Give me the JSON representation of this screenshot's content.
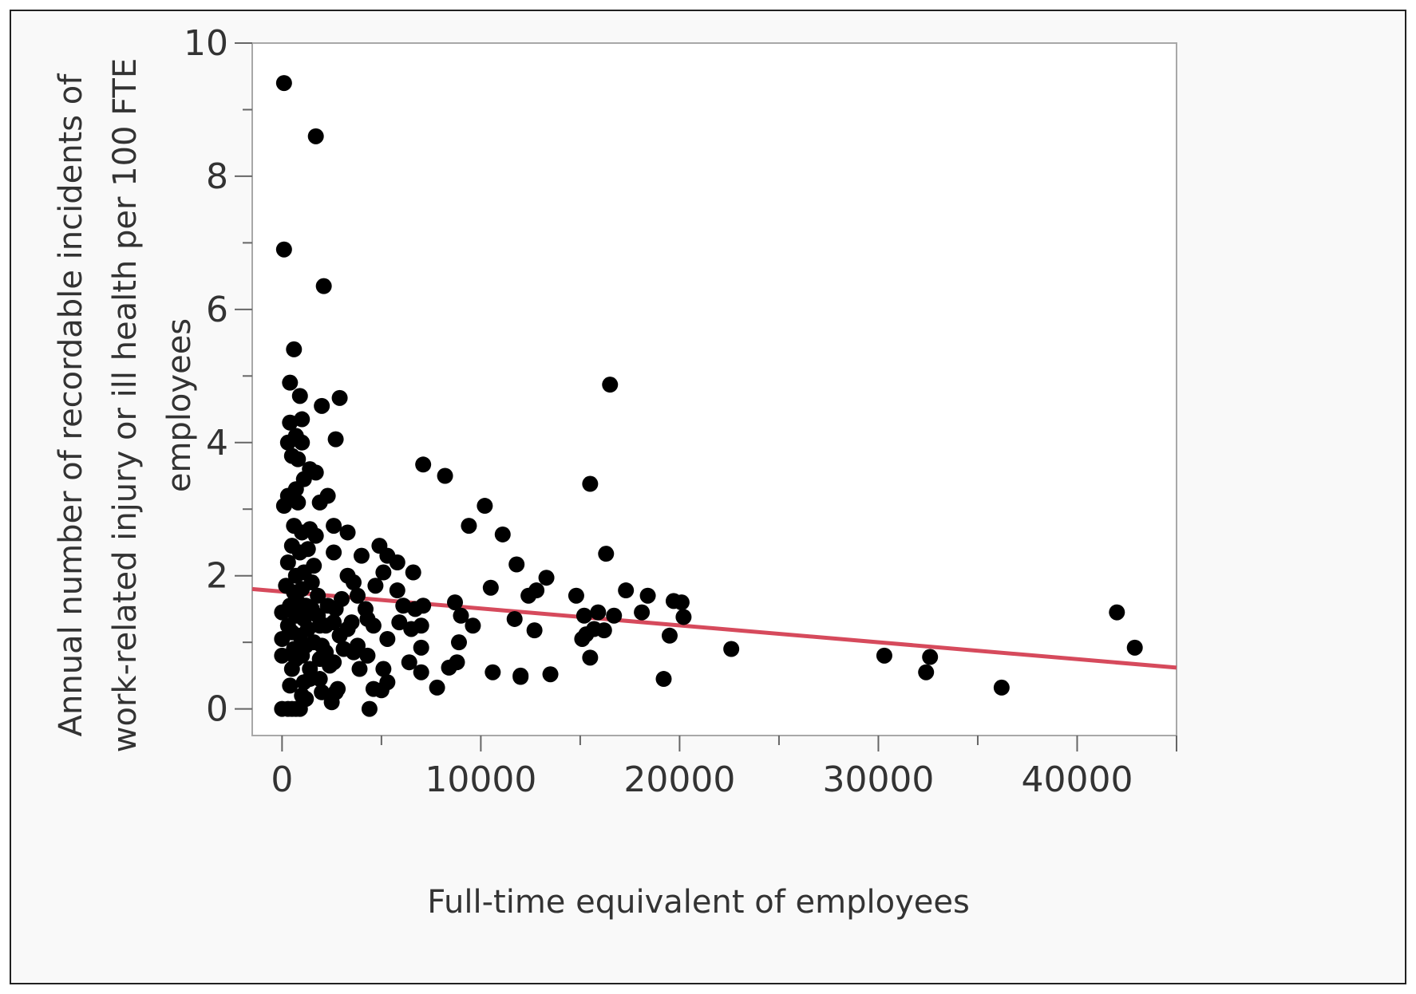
{
  "chart_data": {
    "type": "scatter",
    "title": "",
    "xlabel": "Full-time equivalent of employees",
    "ylabel_lines": [
      "Annual number of recordable incidents of",
      "work-related injury or ill health per 100 FTE",
      "employees"
    ],
    "xlim": [
      -1500,
      45000
    ],
    "ylim": [
      -0.4,
      10
    ],
    "x_ticks": [
      0,
      10000,
      20000,
      30000,
      40000
    ],
    "y_ticks": [
      0,
      2,
      4,
      6,
      8,
      10
    ],
    "grid": false,
    "colors": {
      "points": "#000000",
      "fit_line": "#d64a5c"
    },
    "fit_line": {
      "x": [
        -1500,
        45000
      ],
      "y": [
        1.8,
        0.62
      ]
    },
    "points": [
      [
        100,
        9.4
      ],
      [
        1700,
        8.6
      ],
      [
        100,
        6.9
      ],
      [
        2100,
        6.35
      ],
      [
        600,
        5.4
      ],
      [
        16500,
        4.87
      ],
      [
        400,
        4.9
      ],
      [
        900,
        4.7
      ],
      [
        2000,
        4.55
      ],
      [
        2900,
        4.67
      ],
      [
        400,
        4.3
      ],
      [
        1000,
        4.35
      ],
      [
        700,
        4.1
      ],
      [
        2700,
        4.05
      ],
      [
        300,
        4.0
      ],
      [
        1000,
        4.0
      ],
      [
        500,
        3.8
      ],
      [
        800,
        3.75
      ],
      [
        1400,
        3.6
      ],
      [
        1700,
        3.55
      ],
      [
        1100,
        3.45
      ],
      [
        7100,
        3.67
      ],
      [
        8200,
        3.5
      ],
      [
        15500,
        3.38
      ],
      [
        300,
        3.2
      ],
      [
        700,
        3.3
      ],
      [
        2300,
        3.2
      ],
      [
        1900,
        3.1
      ],
      [
        100,
        3.05
      ],
      [
        800,
        3.1
      ],
      [
        10200,
        3.05
      ],
      [
        600,
        2.75
      ],
      [
        1000,
        2.65
      ],
      [
        1700,
        2.6
      ],
      [
        2600,
        2.75
      ],
      [
        3300,
        2.65
      ],
      [
        9400,
        2.75
      ],
      [
        11100,
        2.62
      ],
      [
        500,
        2.45
      ],
      [
        900,
        2.35
      ],
      [
        1300,
        2.4
      ],
      [
        2600,
        2.35
      ],
      [
        4000,
        2.3
      ],
      [
        4900,
        2.45
      ],
      [
        5300,
        2.3
      ],
      [
        5800,
        2.2
      ],
      [
        300,
        2.2
      ],
      [
        1600,
        2.15
      ],
      [
        11800,
        2.17
      ],
      [
        16300,
        2.33
      ],
      [
        700,
        2.0
      ],
      [
        1100,
        2.05
      ],
      [
        3300,
        2.0
      ],
      [
        3600,
        1.9
      ],
      [
        5100,
        2.05
      ],
      [
        6600,
        2.05
      ],
      [
        13300,
        1.97
      ],
      [
        200,
        1.85
      ],
      [
        600,
        1.75
      ],
      [
        1000,
        1.8
      ],
      [
        1800,
        1.7
      ],
      [
        3000,
        1.65
      ],
      [
        3800,
        1.7
      ],
      [
        5800,
        1.78
      ],
      [
        10500,
        1.82
      ],
      [
        12400,
        1.7
      ],
      [
        12800,
        1.78
      ],
      [
        14800,
        1.7
      ],
      [
        17300,
        1.78
      ],
      [
        18400,
        1.7
      ],
      [
        19700,
        1.62
      ],
      [
        20100,
        1.6
      ],
      [
        400,
        1.55
      ],
      [
        800,
        1.6
      ],
      [
        1500,
        1.5
      ],
      [
        2300,
        1.55
      ],
      [
        4200,
        1.5
      ],
      [
        6100,
        1.55
      ],
      [
        6700,
        1.5
      ],
      [
        7100,
        1.55
      ],
      [
        8700,
        1.6
      ],
      [
        0,
        1.45
      ],
      [
        700,
        1.4
      ],
      [
        1100,
        1.35
      ],
      [
        1800,
        1.4
      ],
      [
        2600,
        1.3
      ],
      [
        3500,
        1.3
      ],
      [
        4300,
        1.35
      ],
      [
        9000,
        1.4
      ],
      [
        15200,
        1.4
      ],
      [
        15900,
        1.45
      ],
      [
        16700,
        1.4
      ],
      [
        18100,
        1.45
      ],
      [
        20200,
        1.38
      ],
      [
        42000,
        1.45
      ],
      [
        300,
        1.25
      ],
      [
        1300,
        1.2
      ],
      [
        2200,
        1.25
      ],
      [
        3300,
        1.2
      ],
      [
        4600,
        1.25
      ],
      [
        5900,
        1.3
      ],
      [
        6500,
        1.2
      ],
      [
        7000,
        1.25
      ],
      [
        9600,
        1.25
      ],
      [
        11700,
        1.35
      ],
      [
        12700,
        1.18
      ],
      [
        15700,
        1.2
      ],
      [
        16200,
        1.18
      ],
      [
        0,
        1.05
      ],
      [
        900,
        1.1
      ],
      [
        1600,
        1.0
      ],
      [
        2900,
        1.1
      ],
      [
        3800,
        0.95
      ],
      [
        5300,
        1.05
      ],
      [
        7000,
        0.92
      ],
      [
        8900,
        1.0
      ],
      [
        15100,
        1.05
      ],
      [
        15300,
        1.12
      ],
      [
        19500,
        1.1
      ],
      [
        600,
        0.9
      ],
      [
        1200,
        0.95
      ],
      [
        2200,
        0.85
      ],
      [
        3100,
        0.9
      ],
      [
        4300,
        0.8
      ],
      [
        22600,
        0.9
      ],
      [
        42900,
        0.92
      ],
      [
        0,
        0.8
      ],
      [
        1000,
        0.8
      ],
      [
        1900,
        0.75
      ],
      [
        2600,
        0.7
      ],
      [
        3600,
        0.85
      ],
      [
        6400,
        0.7
      ],
      [
        8800,
        0.7
      ],
      [
        15500,
        0.77
      ],
      [
        30300,
        0.8
      ],
      [
        32600,
        0.78
      ],
      [
        500,
        0.6
      ],
      [
        1400,
        0.6
      ],
      [
        2400,
        0.65
      ],
      [
        3900,
        0.6
      ],
      [
        5100,
        0.6
      ],
      [
        7000,
        0.55
      ],
      [
        8400,
        0.62
      ],
      [
        10600,
        0.55
      ],
      [
        12000,
        0.5
      ],
      [
        13500,
        0.52
      ],
      [
        32400,
        0.55
      ],
      [
        400,
        0.35
      ],
      [
        1100,
        0.4
      ],
      [
        1900,
        0.45
      ],
      [
        2800,
        0.3
      ],
      [
        4600,
        0.3
      ],
      [
        5300,
        0.4
      ],
      [
        7800,
        0.32
      ],
      [
        12000,
        0.48
      ],
      [
        19200,
        0.45
      ],
      [
        36200,
        0.32
      ],
      [
        1000,
        0.2
      ],
      [
        2000,
        0.25
      ],
      [
        2500,
        0.1
      ],
      [
        5000,
        0.28
      ],
      [
        0,
        0.0
      ],
      [
        300,
        0.0
      ],
      [
        500,
        0.0
      ],
      [
        700,
        0.0
      ],
      [
        900,
        0.0
      ],
      [
        4400,
        0.0
      ],
      [
        1200,
        1.55
      ],
      [
        1500,
        1.9
      ],
      [
        500,
        1.15
      ],
      [
        1900,
        1.25
      ],
      [
        2000,
        0.95
      ],
      [
        700,
        0.75
      ],
      [
        1400,
        0.45
      ],
      [
        1200,
        0.15
      ],
      [
        2700,
        0.25
      ],
      [
        1400,
        2.7
      ],
      [
        2700,
        1.5
      ],
      [
        4700,
        1.85
      ],
      [
        700,
        1.65
      ]
    ]
  }
}
